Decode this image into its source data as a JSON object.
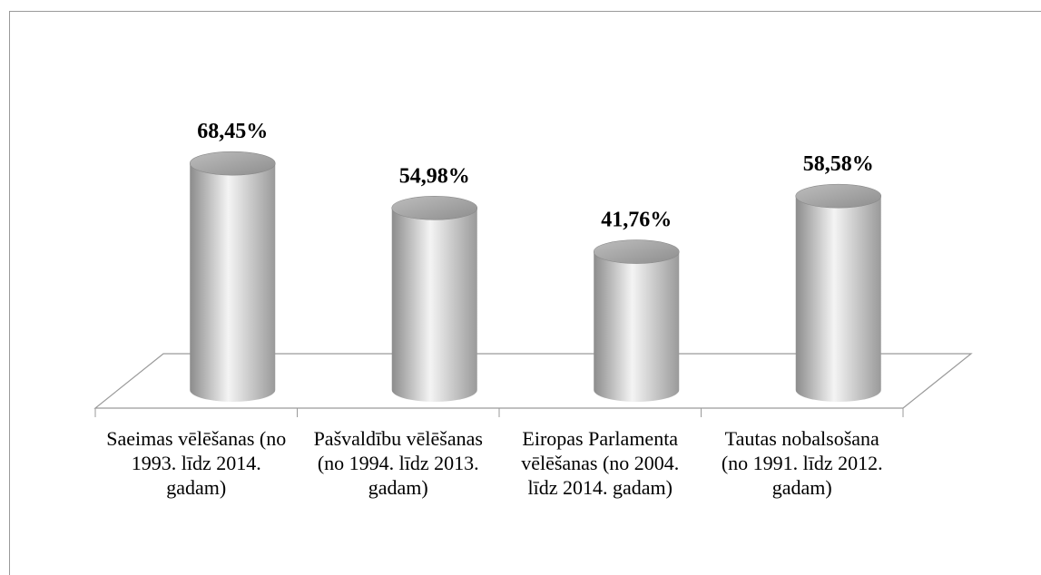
{
  "chart_data": {
    "type": "bar",
    "style": "3d-cylinder",
    "categories": [
      "Saeimas vēlēšanas (no 1993. līdz 2014. gadam)",
      "Pašvaldību vēlēšanas (no 1994. līdz 2013. gadam)",
      "Eiropas Parlamenta vēlēšanas (no 2004. līdz 2014. gadam)",
      "Tautas nobalsošana (no 1991. līdz 2012. gadam)"
    ],
    "values": [
      68.45,
      54.98,
      41.76,
      58.58
    ],
    "value_labels": [
      "68,45%",
      "54,98%",
      "41,76%",
      "58,58%"
    ],
    "color": "#a6a6a6"
  }
}
